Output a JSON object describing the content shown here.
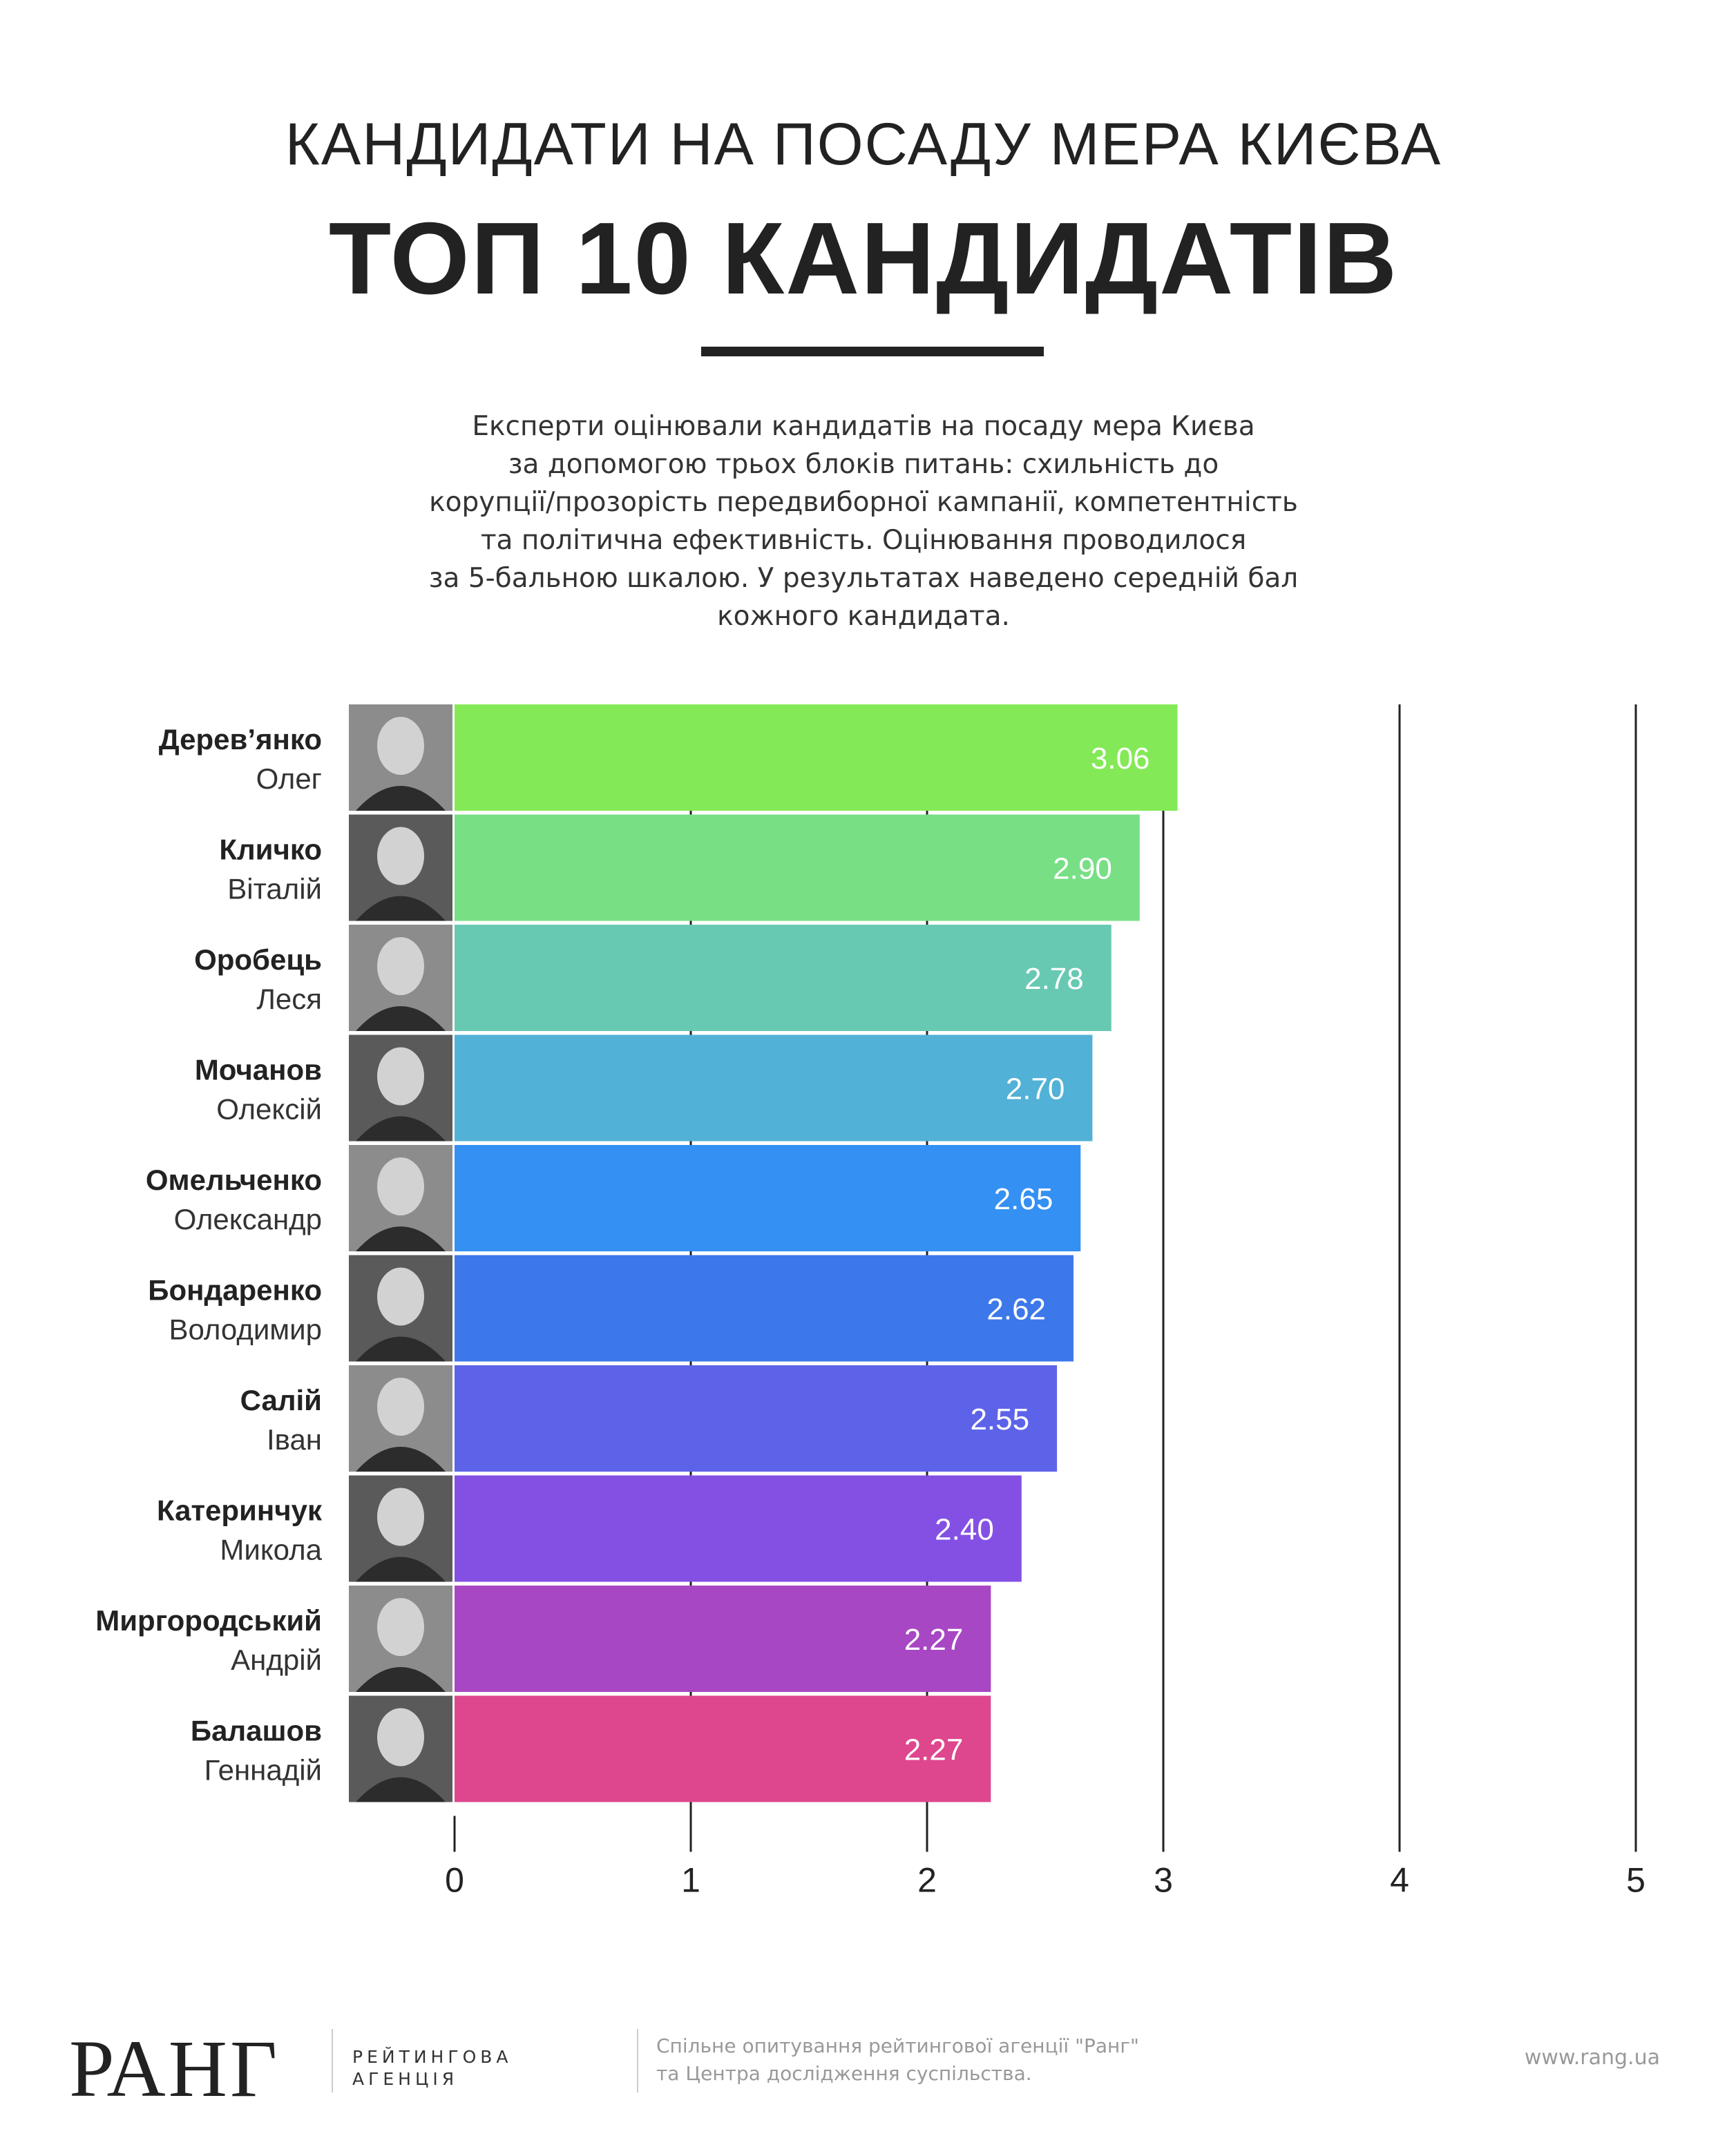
{
  "header": {
    "subtitle": "КАНДИДАТИ НА ПОСАДУ МЕРА КИЄВА",
    "title": "ТОП 10 КАНДИДАТІВ"
  },
  "description": {
    "lines": [
      "Експерти оцінювали кандидатів на посаду мера Києва",
      "за допомогою трьох блоків питань: схильність до",
      "корупції/прозорість передвиборної кампанії, компетентність",
      "та політична ефективність. Оцінювання проводилося",
      "за 5-бальною шкалою. У результатах наведено середній бал",
      "кожного кандидата."
    ]
  },
  "chart_data": {
    "type": "bar",
    "orientation": "horizontal",
    "categories": [
      {
        "surname": "Дерев’янко",
        "name": "Олег"
      },
      {
        "surname": "Кличко",
        "name": "Віталій"
      },
      {
        "surname": "Оробець",
        "name": "Леся"
      },
      {
        "surname": "Мочанов",
        "name": "Олексій"
      },
      {
        "surname": "Омельченко",
        "name": "Олександр"
      },
      {
        "surname": "Бондаренко",
        "name": "Володимир"
      },
      {
        "surname": "Салій",
        "name": "Іван"
      },
      {
        "surname": "Катеринчук",
        "name": "Микола"
      },
      {
        "surname": "Миргородський",
        "name": "Андрій"
      },
      {
        "surname": "Балашов",
        "name": "Геннадій"
      }
    ],
    "values": [
      3.06,
      2.9,
      2.78,
      2.7,
      2.65,
      2.62,
      2.55,
      2.4,
      2.27,
      2.27
    ],
    "value_labels": [
      "3.06",
      "2.90",
      "2.78",
      "2.70",
      "2.65",
      "2.62",
      "2.55",
      "2.40",
      "2.27",
      "2.27"
    ],
    "colors": [
      "#84e956",
      "#78df85",
      "#68c9b2",
      "#52b1d6",
      "#3490f3",
      "#3d78ea",
      "#5d63e9",
      "#8450e4",
      "#a747c3",
      "#de478d"
    ],
    "xlim": [
      0,
      5
    ],
    "x_ticks": [
      "0",
      "1",
      "2",
      "3",
      "4",
      "5"
    ],
    "grid": true
  },
  "footer": {
    "logo": "РАНГ",
    "agency_line1": "РЕЙТИНГОВА",
    "agency_line2": "АГЕНЦІЯ",
    "note_line1": "Спільне опитування рейтингової агенції \"Ранг\"",
    "note_line2": "та Центра дослідження суспільства.",
    "url": "www.rang.ua"
  }
}
